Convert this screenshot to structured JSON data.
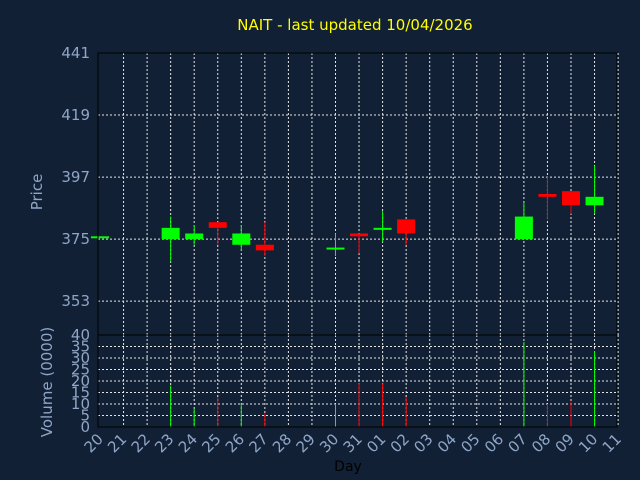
{
  "chart_data": [
    {
      "type": "candlestick",
      "title": "NAIT - last updated 10/04/2026",
      "ylabel": "Price",
      "ylim": [
        341,
        441
      ],
      "yticks": [
        "441",
        "419",
        "397",
        "375",
        "353"
      ],
      "grid": true,
      "candles": [
        {
          "day": "20",
          "open": 376,
          "close": 376,
          "high": 376,
          "low": 376
        },
        {
          "day": "23",
          "open": 375,
          "close": 379,
          "high": 383,
          "low": 367
        },
        {
          "day": "24",
          "open": 375,
          "close": 377,
          "high": 380,
          "low": 373
        },
        {
          "day": "25",
          "open": 381,
          "close": 379,
          "high": 381,
          "low": 373
        },
        {
          "day": "26",
          "open": 373,
          "close": 377,
          "high": 380,
          "low": 371
        },
        {
          "day": "27",
          "open": 373,
          "close": 371,
          "high": 381,
          "low": 369
        },
        {
          "day": "30",
          "open": 372,
          "close": 372,
          "high": 377,
          "low": 369
        },
        {
          "day": "31",
          "open": 377,
          "close": 376,
          "high": 377,
          "low": 370
        },
        {
          "day": "01",
          "open": 379,
          "close": 379,
          "high": 385,
          "low": 374
        },
        {
          "day": "02",
          "open": 382,
          "close": 377,
          "high": 382,
          "low": 373
        },
        {
          "day": "07",
          "open": 375,
          "close": 383,
          "high": 388,
          "low": 375
        },
        {
          "day": "08",
          "open": 391,
          "close": 390,
          "high": 397,
          "low": 382
        },
        {
          "day": "09",
          "open": 392,
          "close": 387,
          "high": 392,
          "low": 384
        },
        {
          "day": "10",
          "open": 387,
          "close": 390,
          "high": 401,
          "low": 384
        }
      ]
    },
    {
      "type": "bar",
      "ylabel": "Volume (0000)",
      "xlabel": "Day",
      "ylim": [
        0,
        40
      ],
      "yticks": [
        "40",
        "35",
        "30",
        "25",
        "20",
        "15",
        "10",
        "5",
        "0"
      ],
      "categories": [
        "20",
        "21",
        "22",
        "23",
        "24",
        "25",
        "26",
        "27",
        "28",
        "29",
        "30",
        "31",
        "01",
        "02",
        "03",
        "04",
        "05",
        "06",
        "07",
        "08",
        "09",
        "10",
        "11"
      ],
      "volumes": [
        {
          "day": "23",
          "value": 18,
          "color": "#00ff00"
        },
        {
          "day": "24",
          "value": 8,
          "color": "#00ff00"
        },
        {
          "day": "25",
          "value": 13,
          "color": "#ff0000"
        },
        {
          "day": "26",
          "value": 10,
          "color": "#00ff00"
        },
        {
          "day": "27",
          "value": 6,
          "color": "#ff0000"
        },
        {
          "day": "30",
          "value": 10,
          "color": "#00ff00"
        },
        {
          "day": "31",
          "value": 19,
          "color": "#ff0000"
        },
        {
          "day": "01",
          "value": 19,
          "color": "#ff0000"
        },
        {
          "day": "02",
          "value": 13,
          "color": "#ff0000"
        },
        {
          "day": "07",
          "value": 37,
          "color": "#00ff00"
        },
        {
          "day": "08",
          "value": 10,
          "color": "#ff0000"
        },
        {
          "day": "09",
          "value": 11,
          "color": "#ff0000"
        },
        {
          "day": "10",
          "value": 33,
          "color": "#00ff00"
        }
      ]
    }
  ],
  "colors": {
    "background": "#112035",
    "plot_bg": "#112035",
    "up": "#00ff00",
    "down": "#ff0000",
    "title": "#ffff00",
    "axis_text": "#8fa6c6"
  }
}
